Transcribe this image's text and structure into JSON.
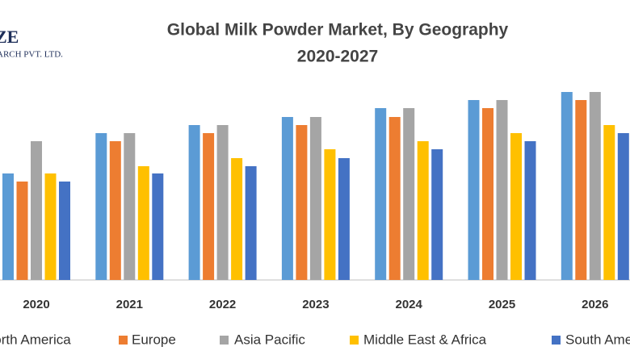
{
  "logo": {
    "line1": "ZE",
    "line2": "ARCH PVT. LTD."
  },
  "chart_data": {
    "type": "bar",
    "title": "Global Milk Powder Market, By Geography",
    "subtitle": "2020-2027",
    "categories": [
      "2020",
      "2021",
      "2022",
      "2023",
      "2024",
      "2025",
      "2026"
    ],
    "series": [
      {
        "name": "North America",
        "color": "#5b9bd5",
        "values": [
          132,
          182,
          192,
          202,
          213,
          223,
          233
        ]
      },
      {
        "name": "Europe",
        "color": "#ed7d31",
        "values": [
          122,
          172,
          182,
          192,
          202,
          213,
          223
        ]
      },
      {
        "name": "Asia Pacific",
        "color": "#a5a5a5",
        "values": [
          172,
          182,
          192,
          202,
          213,
          223,
          233
        ]
      },
      {
        "name": "Middle East & Africa",
        "color": "#ffc000",
        "values": [
          132,
          141,
          151,
          162,
          172,
          182,
          192
        ]
      },
      {
        "name": "South America",
        "color": "#4472c4",
        "values": [
          122,
          132,
          141,
          151,
          162,
          172,
          182
        ]
      }
    ],
    "ylim": [
      0,
      240
    ]
  }
}
